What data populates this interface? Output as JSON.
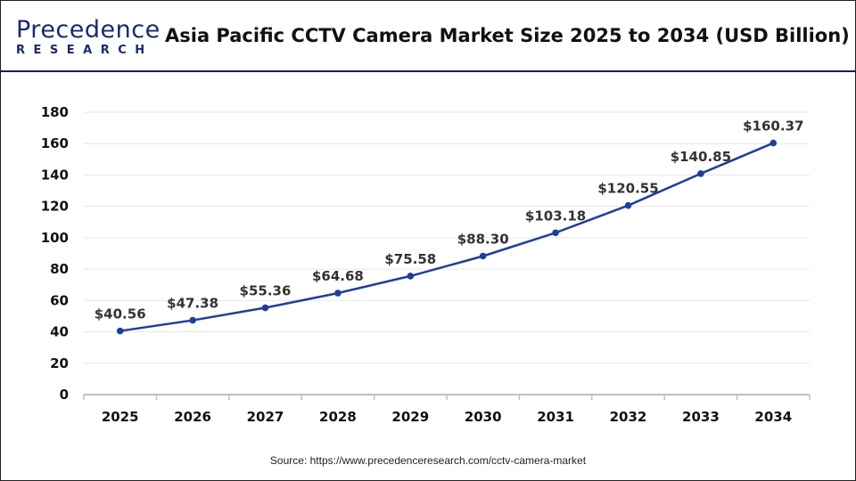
{
  "logo": {
    "top": "Precedence",
    "bottom": "RESEARCH"
  },
  "source": "Source: https://www.precedenceresearch.com/cctv-camera-market",
  "colors": {
    "line": "#1f3f9a",
    "grid": "#e6e6e6",
    "axis": "#bfbfbf"
  },
  "chart_data": {
    "type": "line",
    "title": "Asia Pacific CCTV Camera Market Size 2025 to 2034 (USD Billion)",
    "xlabel": "",
    "ylabel": "",
    "categories": [
      "2025",
      "2026",
      "2027",
      "2028",
      "2029",
      "2030",
      "2031",
      "2032",
      "2033",
      "2034"
    ],
    "values": [
      40.56,
      47.38,
      55.36,
      64.68,
      75.58,
      88.3,
      103.18,
      120.55,
      140.85,
      160.37
    ],
    "labels": [
      "$40.56",
      "$47.38",
      "$55.36",
      "$64.68",
      "$75.58",
      "$88.30",
      "$103.18",
      "$120.55",
      "$140.85",
      "$160.37"
    ],
    "ylim": [
      0,
      180
    ],
    "yticks": [
      "0",
      "20",
      "40",
      "60",
      "80",
      "100",
      "120",
      "140",
      "160",
      "180"
    ],
    "grid": true
  }
}
